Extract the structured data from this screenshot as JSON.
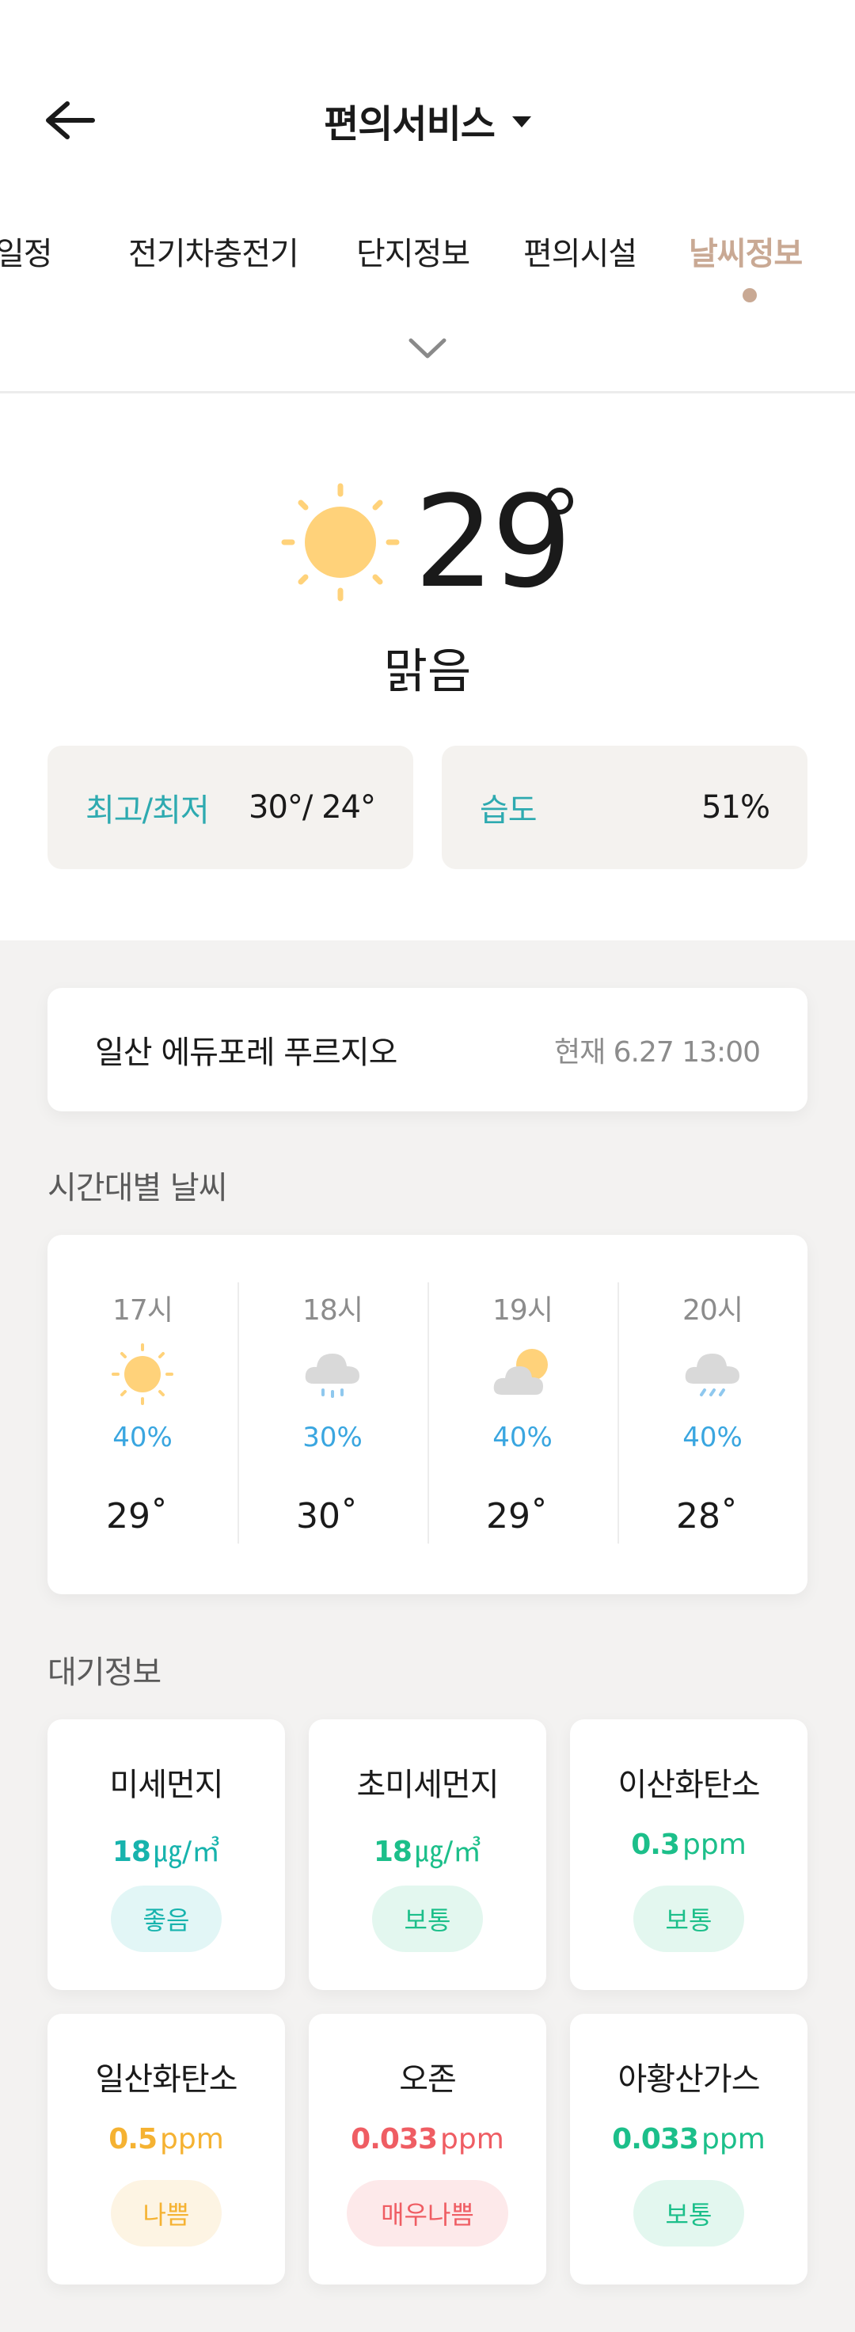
{
  "header": {
    "title": "편의서비스"
  },
  "tabs": [
    {
      "label": "일정",
      "active": false
    },
    {
      "label": "전기차충전기",
      "active": false
    },
    {
      "label": "단지정보",
      "active": false
    },
    {
      "label": "편의시설",
      "active": false
    },
    {
      "label": "날씨정보",
      "active": true
    }
  ],
  "current": {
    "icon": "sun-icon",
    "temperature": "29",
    "condition": "맑음",
    "high_low": {
      "label": "최고/최저",
      "value": "30°/ 24°"
    },
    "humidity": {
      "label": "습도",
      "value": "51%"
    }
  },
  "location": {
    "name": "일산 에듀포레 푸르지오",
    "time": "현재 6.27 13:00"
  },
  "hourly_title": "시간대별 날씨",
  "hourly": [
    {
      "hour": "17시",
      "icon": "sun-icon",
      "precip": "40%",
      "temp": "29"
    },
    {
      "hour": "18시",
      "icon": "rain-cloud-icon",
      "precip": "30%",
      "temp": "30"
    },
    {
      "hour": "19시",
      "icon": "partly-cloudy-icon",
      "precip": "40%",
      "temp": "29"
    },
    {
      "hour": "20시",
      "icon": "shower-cloud-icon",
      "precip": "40%",
      "temp": "28"
    }
  ],
  "air_title": "대기정보",
  "air": [
    {
      "name": "미세먼지",
      "value": "18",
      "unit": "㎍/㎥",
      "status": "좋음",
      "level": "good"
    },
    {
      "name": "초미세먼지",
      "value": "18",
      "unit": "㎍/㎥",
      "status": "보통",
      "level": "normal"
    },
    {
      "name": "이산화탄소",
      "value": "0.3",
      "unit": "ppm",
      "status": "보통",
      "level": "normal"
    },
    {
      "name": "일산화탄소",
      "value": "0.5",
      "unit": "ppm",
      "status": "나쁨",
      "level": "bad"
    },
    {
      "name": "오존",
      "value": "0.033",
      "unit": "ppm",
      "status": "매우나쁨",
      "level": "verybad"
    },
    {
      "name": "아황산가스",
      "value": "0.033",
      "unit": "ppm",
      "status": "보통",
      "level": "normal"
    }
  ],
  "colors": {
    "accent_tab": "#c9a994",
    "label_teal": "#2eaab0",
    "precip_blue": "#3aa6e0",
    "good": "#17b3ad",
    "normal": "#1cbf8a",
    "bad": "#f5b232",
    "verybad": "#ef5d63",
    "sun": "#ffd27a"
  }
}
